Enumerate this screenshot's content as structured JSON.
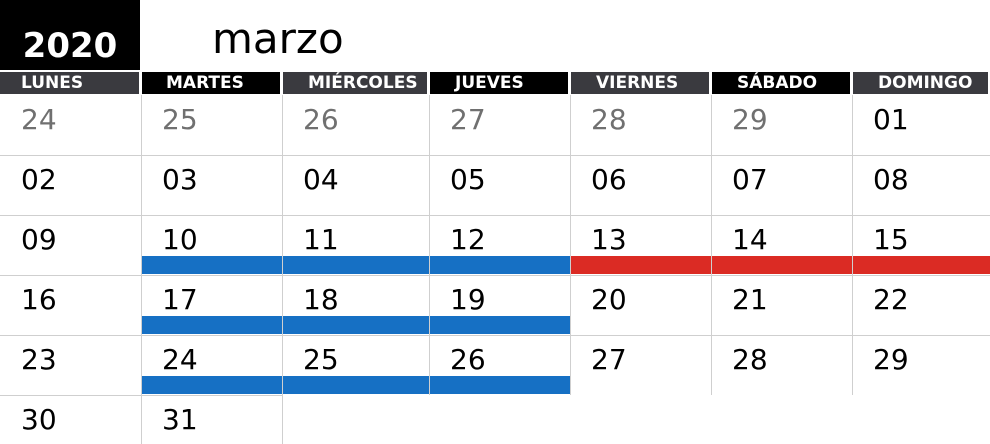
{
  "year": "2020",
  "month": "marzo",
  "weekdays": [
    "LUNES",
    "MARTES",
    "MIÉRCOLES",
    "JUEVES",
    "VIERNES",
    "SÁBADO",
    "DOMINGO"
  ],
  "weeks": [
    [
      {
        "d": "24",
        "prev": true
      },
      {
        "d": "25",
        "prev": true
      },
      {
        "d": "26",
        "prev": true
      },
      {
        "d": "27",
        "prev": true
      },
      {
        "d": "28",
        "prev": true
      },
      {
        "d": "29",
        "prev": true
      },
      {
        "d": "01"
      }
    ],
    [
      {
        "d": "02"
      },
      {
        "d": "03"
      },
      {
        "d": "04"
      },
      {
        "d": "05"
      },
      {
        "d": "06"
      },
      {
        "d": "07"
      },
      {
        "d": "08"
      }
    ],
    [
      {
        "d": "09"
      },
      {
        "d": "10",
        "bar": "blue"
      },
      {
        "d": "11",
        "bar": "blue"
      },
      {
        "d": "12",
        "bar": "blue"
      },
      {
        "d": "13",
        "bar": "red"
      },
      {
        "d": "14",
        "bar": "red"
      },
      {
        "d": "15",
        "bar": "red"
      }
    ],
    [
      {
        "d": "16"
      },
      {
        "d": "17",
        "bar": "blue"
      },
      {
        "d": "18",
        "bar": "blue"
      },
      {
        "d": "19",
        "bar": "blue"
      },
      {
        "d": "20"
      },
      {
        "d": "21"
      },
      {
        "d": "22"
      }
    ],
    [
      {
        "d": "23"
      },
      {
        "d": "24",
        "bar": "blue"
      },
      {
        "d": "25",
        "bar": "blue"
      },
      {
        "d": "26",
        "bar": "blue"
      },
      {
        "d": "27"
      },
      {
        "d": "28"
      },
      {
        "d": "29"
      }
    ],
    [
      {
        "d": "30"
      },
      {
        "d": "31"
      }
    ]
  ],
  "colors": {
    "blue_bar": "#1670c4",
    "red_bar": "#db2b24",
    "header_dark": "#3a3a3f",
    "header_black": "#000000",
    "prev_month_text": "#707070"
  }
}
